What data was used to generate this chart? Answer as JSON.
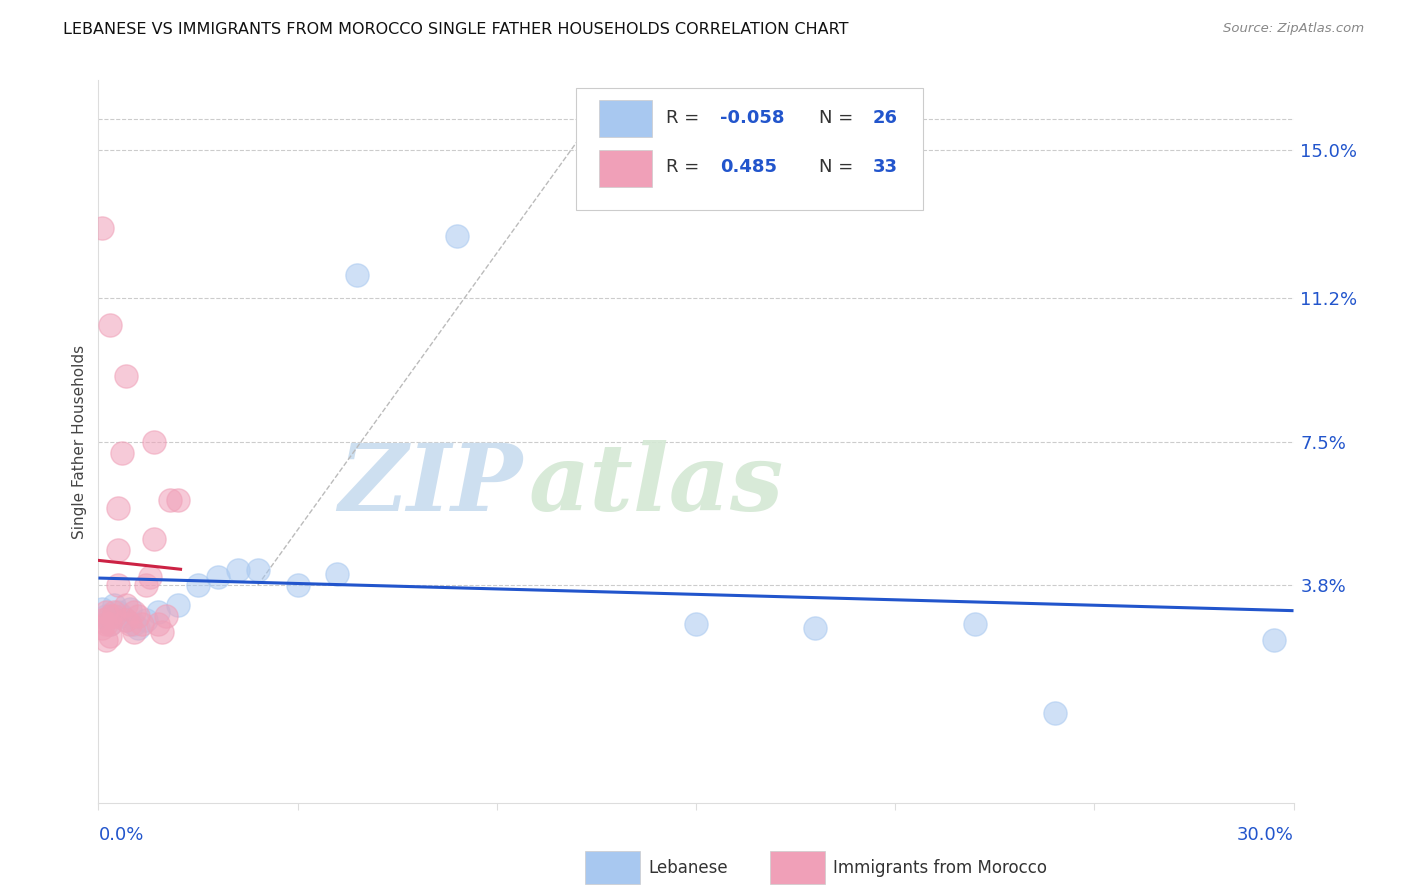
{
  "title": "LEBANESE VS IMMIGRANTS FROM MOROCCO SINGLE FATHER HOUSEHOLDS CORRELATION CHART",
  "source": "Source: ZipAtlas.com",
  "ylabel": "Single Father Households",
  "ytick_labels": [
    "15.0%",
    "11.2%",
    "7.5%",
    "3.8%"
  ],
  "ytick_values": [
    0.15,
    0.112,
    0.075,
    0.038
  ],
  "xlim": [
    0.0,
    0.3
  ],
  "ylim": [
    -0.018,
    0.168
  ],
  "blue_color": "#A8C8F0",
  "pink_color": "#F0A0B8",
  "blue_line_color": "#2255CC",
  "pink_line_color": "#CC2244",
  "blue_scatter": [
    [
      0.001,
      0.032
    ],
    [
      0.002,
      0.03
    ],
    [
      0.003,
      0.028
    ],
    [
      0.004,
      0.033
    ],
    [
      0.005,
      0.031
    ],
    [
      0.006,
      0.03
    ],
    [
      0.007,
      0.029
    ],
    [
      0.008,
      0.032
    ],
    [
      0.009,
      0.028
    ],
    [
      0.01,
      0.027
    ],
    [
      0.012,
      0.029
    ],
    [
      0.015,
      0.031
    ],
    [
      0.02,
      0.033
    ],
    [
      0.025,
      0.038
    ],
    [
      0.03,
      0.04
    ],
    [
      0.035,
      0.042
    ],
    [
      0.04,
      0.042
    ],
    [
      0.05,
      0.038
    ],
    [
      0.06,
      0.041
    ],
    [
      0.065,
      0.118
    ],
    [
      0.09,
      0.128
    ],
    [
      0.15,
      0.028
    ],
    [
      0.18,
      0.027
    ],
    [
      0.22,
      0.028
    ],
    [
      0.24,
      0.005
    ],
    [
      0.295,
      0.024
    ]
  ],
  "pink_scatter": [
    [
      0.001,
      0.029
    ],
    [
      0.001,
      0.027
    ],
    [
      0.002,
      0.031
    ],
    [
      0.002,
      0.028
    ],
    [
      0.003,
      0.03
    ],
    [
      0.003,
      0.028
    ],
    [
      0.004,
      0.03
    ],
    [
      0.004,
      0.031
    ],
    [
      0.005,
      0.038
    ],
    [
      0.005,
      0.047
    ],
    [
      0.006,
      0.072
    ],
    [
      0.007,
      0.033
    ],
    [
      0.007,
      0.029
    ],
    [
      0.008,
      0.028
    ],
    [
      0.009,
      0.031
    ],
    [
      0.009,
      0.026
    ],
    [
      0.01,
      0.03
    ],
    [
      0.011,
      0.028
    ],
    [
      0.012,
      0.038
    ],
    [
      0.013,
      0.04
    ],
    [
      0.014,
      0.05
    ],
    [
      0.015,
      0.028
    ],
    [
      0.016,
      0.026
    ],
    [
      0.017,
      0.03
    ],
    [
      0.002,
      0.024
    ],
    [
      0.003,
      0.025
    ],
    [
      0.018,
      0.06
    ],
    [
      0.02,
      0.06
    ],
    [
      0.007,
      0.092
    ],
    [
      0.003,
      0.105
    ],
    [
      0.001,
      0.13
    ],
    [
      0.014,
      0.075
    ],
    [
      0.005,
      0.058
    ]
  ],
  "watermark_zip": "ZIP",
  "watermark_atlas": "atlas",
  "grid_color": "#CCCCCC",
  "dash_line": [
    [
      0.04,
      0.038
    ],
    [
      0.12,
      0.152
    ]
  ]
}
